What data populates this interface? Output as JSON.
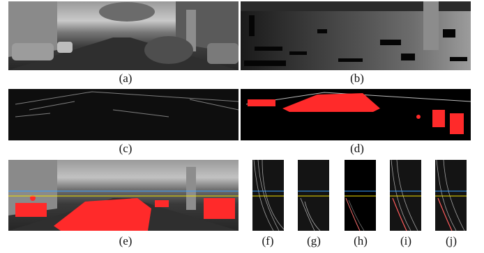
{
  "captions": {
    "a": "(a)",
    "b": "(b)",
    "c": "(c)",
    "d": "(d)",
    "e": "(e)",
    "f": "(f)",
    "g": "(g)",
    "h": "(h)",
    "i": "(i)",
    "j": "(j)"
  },
  "colors": {
    "detection": "#ff2a2a",
    "guide_blue": "#3aa0ff",
    "guide_yellow": "#f0e000"
  }
}
